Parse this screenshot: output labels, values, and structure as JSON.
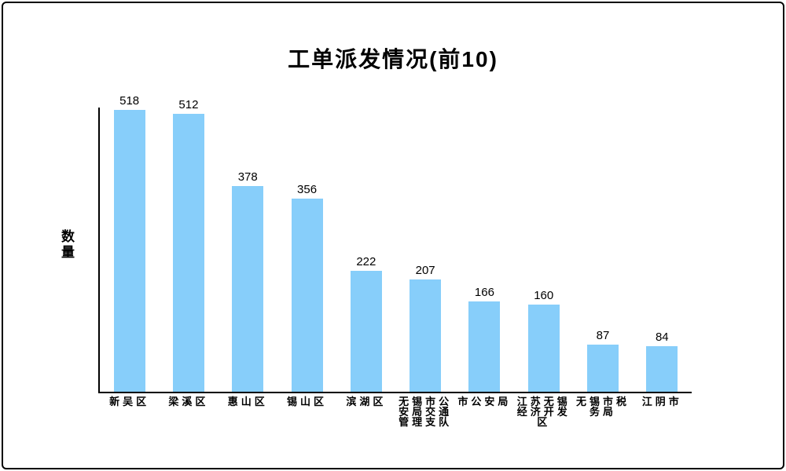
{
  "frame": {
    "background": "#ffffff",
    "border_color": "#000000"
  },
  "chart_data": {
    "type": "bar",
    "title": "工单派发情况(前10)",
    "xlabel": "",
    "ylabel": "数量",
    "categories": [
      "新吴区",
      "梁溪区",
      "惠山区",
      "锡山区",
      "滨湖区",
      "无锡市公安局交通管理支队",
      "市公安局",
      "江苏无锡经济开发区",
      "无锡市税务局",
      "江阴市"
    ],
    "values": [
      518,
      512,
      378,
      356,
      222,
      207,
      166,
      160,
      87,
      84
    ],
    "value_labels_shown": true,
    "bar_color": "#87CEFA",
    "axis_color": "#000000",
    "text_color": "#000000",
    "ylim": [
      0,
      520
    ],
    "grid": false,
    "legend": "none"
  }
}
